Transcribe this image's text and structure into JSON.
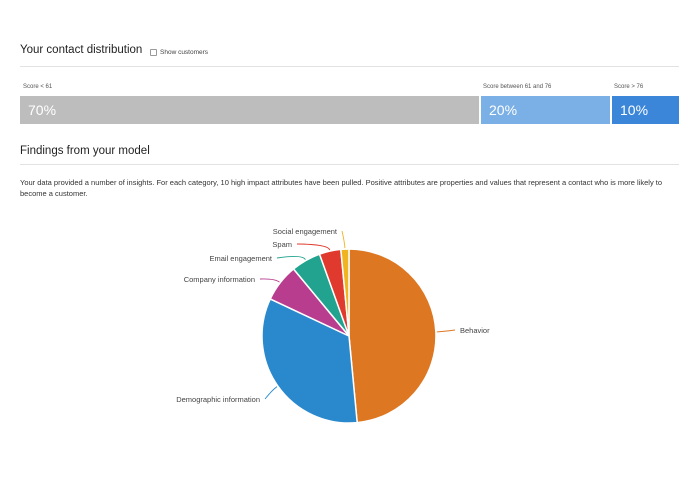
{
  "contact_distribution": {
    "title": "Your contact distribution",
    "show_customers_label": "Show customers",
    "show_customers_checked": false,
    "bars": [
      {
        "label": "Score < 61",
        "value_text": "70%",
        "percent": 70,
        "color": "#bdbdbd"
      },
      {
        "label": "Score between 61 and 76",
        "value_text": "20%",
        "percent": 20,
        "color": "#7ab0e6"
      },
      {
        "label": "Score > 76",
        "value_text": "10%",
        "percent": 10,
        "color": "#3b86d8"
      }
    ]
  },
  "findings": {
    "title": "Findings from your model",
    "description": "Your data provided a number of insights. For each category, 10 high impact attributes have been pulled. Positive attributes are properties and values that represent a contact who is more likely to become a customer."
  },
  "chart_data": {
    "type": "pie",
    "title": "",
    "slices": [
      {
        "label": "Behavior",
        "value": 48.5,
        "color": "#dd7722"
      },
      {
        "label": "Demographic information",
        "value": 33.5,
        "color": "#2a88cc"
      },
      {
        "label": "Company information",
        "value": 7,
        "color": "#b83d8f"
      },
      {
        "label": "Email engagement",
        "value": 5.5,
        "color": "#21a38f"
      },
      {
        "label": "Spam",
        "value": 4,
        "color": "#e03a2e"
      },
      {
        "label": "Social engagement",
        "value": 1.5,
        "color": "#f0b420"
      }
    ]
  }
}
